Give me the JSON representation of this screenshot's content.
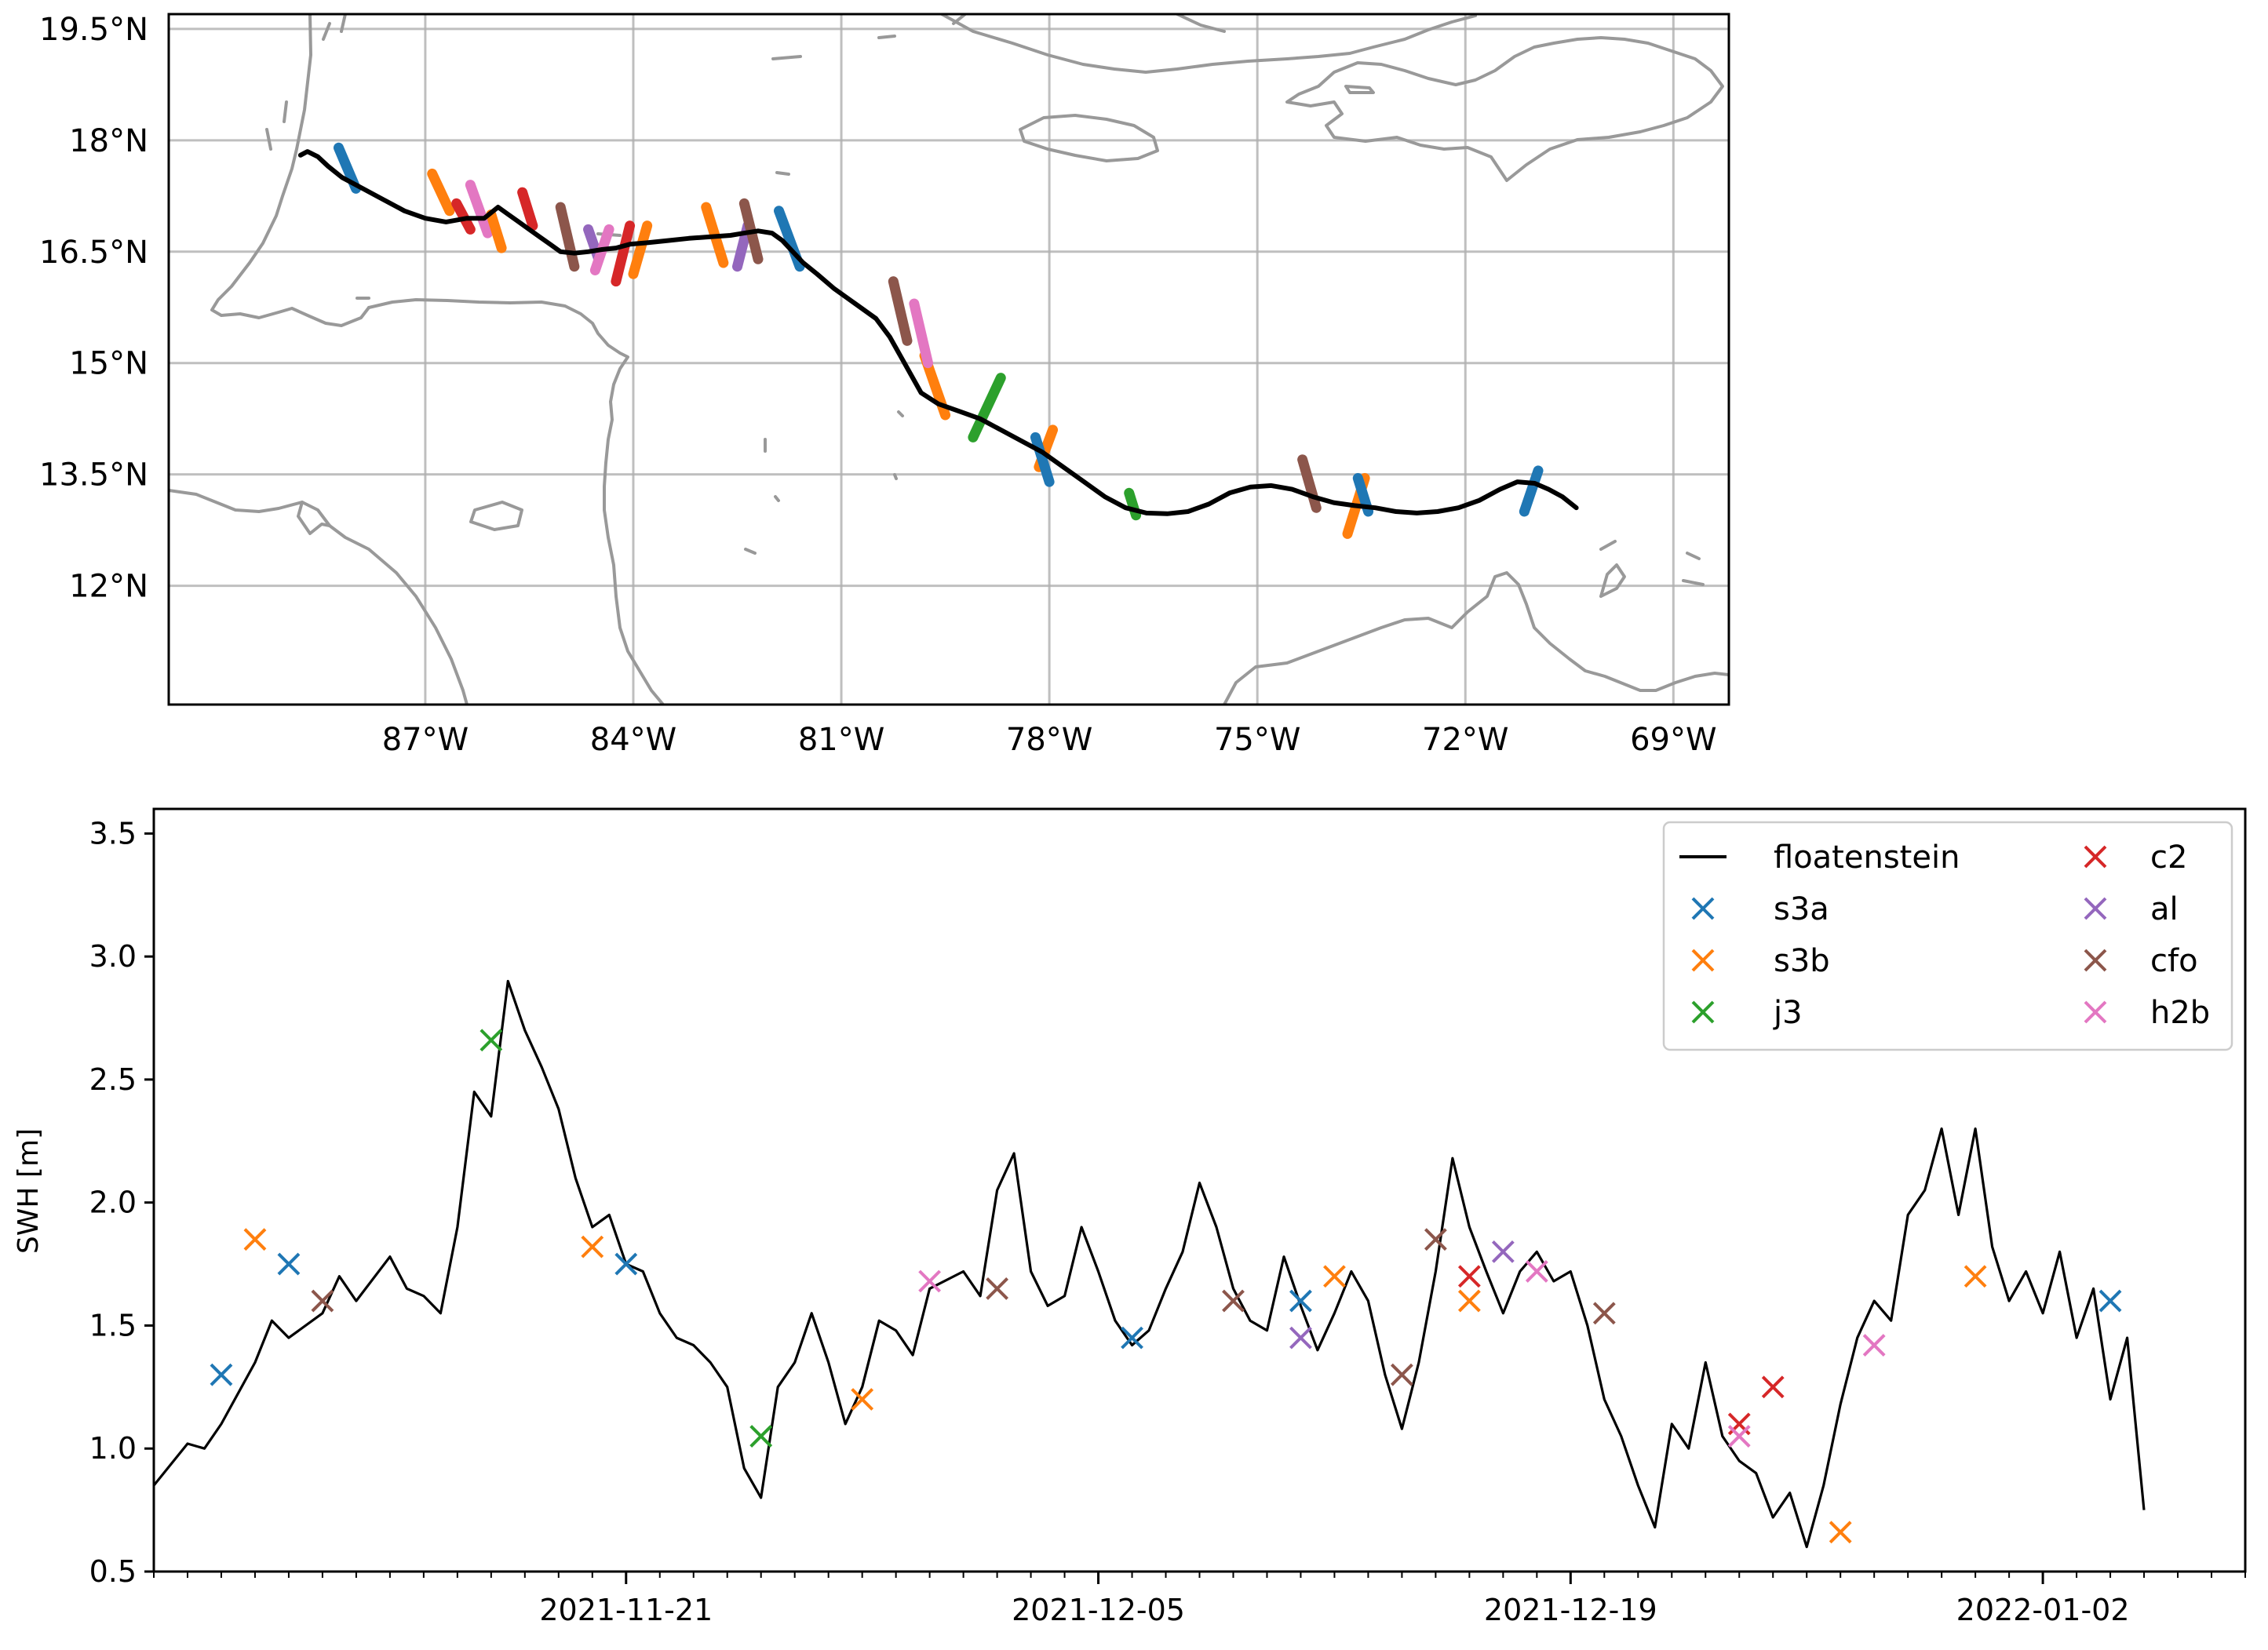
{
  "chart_data": [
    {
      "type": "scatter",
      "subtype": "map-track",
      "title": "",
      "xlabel": "",
      "ylabel": "",
      "xlim": [
        -90.7,
        -68.2
      ],
      "ylim": [
        10.4,
        19.7
      ],
      "grid": true,
      "x_ticks": [
        -87,
        -84,
        -81,
        -78,
        -75,
        -72,
        -69
      ],
      "x_tick_labels": [
        "87°W",
        "84°W",
        "81°W",
        "78°W",
        "75°W",
        "72°W",
        "69°W"
      ],
      "y_ticks": [
        12,
        13.5,
        15,
        16.5,
        18,
        19.5
      ],
      "y_tick_labels": [
        "12°N",
        "13.5°N",
        "15°N",
        "16.5°N",
        "18°N",
        "19.5°N"
      ],
      "track": {
        "name": "floatenstein",
        "color": "#000000",
        "lon": [
          -88.8,
          -88.7,
          -88.55,
          -88.4,
          -88.2,
          -87.9,
          -87.6,
          -87.3,
          -87.0,
          -86.7,
          -86.4,
          -86.15,
          -85.95,
          -85.8,
          -85.65,
          -85.5,
          -85.35,
          -85.2,
          -85.05,
          -84.85,
          -84.65,
          -84.45,
          -84.25,
          -84.05,
          -83.8,
          -83.5,
          -83.2,
          -82.9,
          -82.6,
          -82.4,
          -82.2,
          -82.0,
          -81.85,
          -81.7,
          -81.55,
          -81.35,
          -81.1,
          -80.8,
          -80.5,
          -80.3,
          -80.15,
          -80.0,
          -79.85,
          -79.6,
          -79.3,
          -79.0,
          -78.7,
          -78.4,
          -78.1,
          -77.8,
          -77.5,
          -77.2,
          -76.9,
          -76.6,
          -76.3,
          -76.0,
          -75.7,
          -75.4,
          -75.1,
          -74.8,
          -74.5,
          -74.2,
          -73.9,
          -73.6,
          -73.3,
          -73.0,
          -72.7,
          -72.4,
          -72.1,
          -71.8,
          -71.5,
          -71.25,
          -71.0,
          -70.8,
          -70.6,
          -70.4
        ],
        "lat": [
          17.8,
          17.85,
          17.78,
          17.65,
          17.5,
          17.35,
          17.2,
          17.05,
          16.95,
          16.9,
          16.95,
          16.95,
          17.1,
          17.0,
          16.9,
          16.8,
          16.7,
          16.6,
          16.5,
          16.48,
          16.5,
          16.53,
          16.55,
          16.6,
          16.62,
          16.65,
          16.68,
          16.7,
          16.72,
          16.75,
          16.78,
          16.75,
          16.65,
          16.5,
          16.35,
          16.2,
          16.0,
          15.8,
          15.6,
          15.35,
          15.1,
          14.85,
          14.6,
          14.45,
          14.35,
          14.25,
          14.1,
          13.95,
          13.8,
          13.6,
          13.4,
          13.2,
          13.05,
          12.98,
          12.97,
          13.0,
          13.1,
          13.25,
          13.33,
          13.35,
          13.3,
          13.2,
          13.12,
          13.08,
          13.05,
          13.0,
          12.98,
          13.0,
          13.05,
          13.15,
          13.3,
          13.4,
          13.38,
          13.3,
          13.2,
          13.05
        ]
      },
      "passes": [
        {
          "series": "s3a",
          "lon": [
            -88.25,
            -88.0
          ],
          "lat": [
            17.9,
            17.35
          ]
        },
        {
          "series": "s3b",
          "lon": [
            -86.9,
            -86.65
          ],
          "lat": [
            17.55,
            17.05
          ]
        },
        {
          "series": "c2",
          "lon": [
            -86.55,
            -86.35
          ],
          "lat": [
            17.15,
            16.8
          ]
        },
        {
          "series": "h2b",
          "lon": [
            -86.35,
            -86.1
          ],
          "lat": [
            17.4,
            16.75
          ]
        },
        {
          "series": "s3b",
          "lon": [
            -86.05,
            -85.9
          ],
          "lat": [
            17.0,
            16.55
          ]
        },
        {
          "series": "c2",
          "lon": [
            -85.6,
            -85.45
          ],
          "lat": [
            17.3,
            16.85
          ]
        },
        {
          "series": "cfo",
          "lon": [
            -85.05,
            -84.85
          ],
          "lat": [
            17.1,
            16.3
          ]
        },
        {
          "series": "al",
          "lon": [
            -84.65,
            -84.5
          ],
          "lat": [
            16.8,
            16.4
          ]
        },
        {
          "series": "h2b",
          "lon": [
            -84.35,
            -84.55
          ],
          "lat": [
            16.8,
            16.25
          ]
        },
        {
          "series": "c2",
          "lon": [
            -84.05,
            -84.25
          ],
          "lat": [
            16.85,
            16.1
          ]
        },
        {
          "series": "s3b",
          "lon": [
            -83.8,
            -84.0
          ],
          "lat": [
            16.85,
            16.2
          ]
        },
        {
          "series": "s3b",
          "lon": [
            -82.95,
            -82.7
          ],
          "lat": [
            17.1,
            16.35
          ]
        },
        {
          "series": "al",
          "lon": [
            -82.35,
            -82.5
          ],
          "lat": [
            16.85,
            16.3
          ]
        },
        {
          "series": "cfo",
          "lon": [
            -82.4,
            -82.2
          ],
          "lat": [
            17.15,
            16.4
          ]
        },
        {
          "series": "s3a",
          "lon": [
            -81.9,
            -81.6
          ],
          "lat": [
            17.05,
            16.3
          ]
        },
        {
          "series": "cfo",
          "lon": [
            -80.25,
            -80.05
          ],
          "lat": [
            16.1,
            15.3
          ]
        },
        {
          "series": "s3b",
          "lon": [
            -79.8,
            -79.5
          ],
          "lat": [
            15.1,
            14.3
          ]
        },
        {
          "series": "h2b",
          "lon": [
            -79.95,
            -79.75
          ],
          "lat": [
            15.8,
            15.0
          ]
        },
        {
          "series": "j3",
          "lon": [
            -78.7,
            -79.1
          ],
          "lat": [
            14.8,
            14.0
          ]
        },
        {
          "series": "s3b",
          "lon": [
            -77.95,
            -78.15
          ],
          "lat": [
            14.1,
            13.6
          ]
        },
        {
          "series": "s3a",
          "lon": [
            -78.2,
            -78.0
          ],
          "lat": [
            14.0,
            13.4
          ]
        },
        {
          "series": "j3",
          "lon": [
            -76.85,
            -76.75
          ],
          "lat": [
            13.25,
            12.95
          ]
        },
        {
          "series": "cfo",
          "lon": [
            -74.35,
            -74.15
          ],
          "lat": [
            13.7,
            13.05
          ]
        },
        {
          "series": "s3b",
          "lon": [
            -73.45,
            -73.7
          ],
          "lat": [
            13.45,
            12.7
          ]
        },
        {
          "series": "s3a",
          "lon": [
            -73.55,
            -73.4
          ],
          "lat": [
            13.45,
            13.0
          ]
        },
        {
          "series": "s3a",
          "lon": [
            -70.95,
            -71.15
          ],
          "lat": [
            13.55,
            13.0
          ]
        }
      ]
    },
    {
      "type": "line",
      "title": "",
      "xlabel": "",
      "ylabel": "SWH [m]",
      "x_range": [
        "2021-11-07",
        "2022-01-08"
      ],
      "ylim": [
        0.5,
        3.6
      ],
      "y_ticks": [
        0.5,
        1.0,
        1.5,
        2.0,
        2.5,
        3.0,
        3.5
      ],
      "y_tick_labels": [
        "0.5",
        "1.0",
        "1.5",
        "2.0",
        "2.5",
        "3.0",
        "3.5"
      ],
      "x_ticks": [
        "2021-11-21",
        "2021-12-05",
        "2021-12-19",
        "2022-01-02"
      ],
      "grid": false,
      "legend": {
        "placement": "top-right",
        "entries": [
          {
            "label": "floatenstein",
            "color": "#000000",
            "marker": "line"
          },
          {
            "label": "s3a",
            "color": "#1f77b4",
            "marker": "x"
          },
          {
            "label": "s3b",
            "color": "#ff7f0e",
            "marker": "x"
          },
          {
            "label": "j3",
            "color": "#2ca02c",
            "marker": "x"
          },
          {
            "label": "c2",
            "color": "#d62728",
            "marker": "x"
          },
          {
            "label": "al",
            "color": "#9467bd",
            "marker": "x"
          },
          {
            "label": "cfo",
            "color": "#8c564b",
            "marker": "x"
          },
          {
            "label": "h2b",
            "color": "#e377c2",
            "marker": "x"
          }
        ]
      },
      "line_series": {
        "name": "floatenstein",
        "color": "#000000",
        "x": [
          "2021-11-07",
          "2021-11-08",
          "2021-11-08 12:00",
          "2021-11-09",
          "2021-11-10",
          "2021-11-10 12:00",
          "2021-11-11",
          "2021-11-12",
          "2021-11-12 12:00",
          "2021-11-13",
          "2021-11-14",
          "2021-11-14 12:00",
          "2021-11-15",
          "2021-11-15 12:00",
          "2021-11-16",
          "2021-11-16 12:00",
          "2021-11-17",
          "2021-11-17 12:00",
          "2021-11-18",
          "2021-11-18 12:00",
          "2021-11-19",
          "2021-11-19 12:00",
          "2021-11-20",
          "2021-11-20 12:00",
          "2021-11-21",
          "2021-11-21 12:00",
          "2021-11-22",
          "2021-11-22 12:00",
          "2021-11-23",
          "2021-11-23 12:00",
          "2021-11-24",
          "2021-11-24 12:00",
          "2021-11-25",
          "2021-11-25 12:00",
          "2021-11-26",
          "2021-11-26 12:00",
          "2021-11-27",
          "2021-11-27 12:00",
          "2021-11-28",
          "2021-11-28 12:00",
          "2021-11-29",
          "2021-11-29 12:00",
          "2021-11-30",
          "2021-12-01",
          "2021-12-01 12:00",
          "2021-12-02",
          "2021-12-02 12:00",
          "2021-12-03",
          "2021-12-03 12:00",
          "2021-12-04",
          "2021-12-04 12:00",
          "2021-12-05",
          "2021-12-05 12:00",
          "2021-12-06",
          "2021-12-06 12:00",
          "2021-12-07",
          "2021-12-07 12:00",
          "2021-12-08",
          "2021-12-08 12:00",
          "2021-12-09",
          "2021-12-09 12:00",
          "2021-12-10",
          "2021-12-10 12:00",
          "2021-12-11",
          "2021-12-11 12:00",
          "2021-12-12",
          "2021-12-12 12:00",
          "2021-12-13",
          "2021-12-13 12:00",
          "2021-12-14",
          "2021-12-14 12:00",
          "2021-12-15",
          "2021-12-15 12:00",
          "2021-12-16",
          "2021-12-16 12:00",
          "2021-12-17",
          "2021-12-17 12:00",
          "2021-12-18",
          "2021-12-18 12:00",
          "2021-12-19",
          "2021-12-19 12:00",
          "2021-12-20",
          "2021-12-20 12:00",
          "2021-12-21",
          "2021-12-21 12:00",
          "2021-12-22",
          "2021-12-22 12:00",
          "2021-12-23",
          "2021-12-23 12:00",
          "2021-12-24",
          "2021-12-24 12:00",
          "2021-12-25",
          "2021-12-25 12:00",
          "2021-12-26",
          "2021-12-26 12:00",
          "2021-12-27",
          "2021-12-27 12:00",
          "2021-12-28",
          "2021-12-28 12:00",
          "2021-12-29",
          "2021-12-29 12:00",
          "2021-12-30",
          "2021-12-30 12:00",
          "2021-12-31",
          "2021-12-31 12:00",
          "2022-01-01",
          "2022-01-01 12:00",
          "2022-01-02",
          "2022-01-02 12:00",
          "2022-01-03",
          "2022-01-03 12:00",
          "2022-01-04",
          "2022-01-04 12:00",
          "2022-01-05"
        ],
        "y": [
          0.85,
          1.02,
          1.0,
          1.1,
          1.35,
          1.52,
          1.45,
          1.55,
          1.7,
          1.6,
          1.78,
          1.65,
          1.62,
          1.55,
          1.9,
          2.45,
          2.35,
          2.9,
          2.7,
          2.55,
          2.38,
          2.1,
          1.9,
          1.95,
          1.75,
          1.72,
          1.55,
          1.45,
          1.42,
          1.35,
          1.25,
          0.92,
          0.8,
          1.25,
          1.35,
          1.55,
          1.35,
          1.1,
          1.25,
          1.52,
          1.48,
          1.38,
          1.65,
          1.72,
          1.62,
          2.05,
          2.2,
          1.72,
          1.58,
          1.62,
          1.9,
          1.72,
          1.52,
          1.42,
          1.48,
          1.65,
          1.8,
          2.08,
          1.9,
          1.65,
          1.52,
          1.48,
          1.78,
          1.58,
          1.4,
          1.55,
          1.72,
          1.6,
          1.3,
          1.08,
          1.35,
          1.72,
          2.18,
          1.9,
          1.72,
          1.55,
          1.72,
          1.8,
          1.68,
          1.72,
          1.5,
          1.2,
          1.05,
          0.85,
          0.68,
          1.1,
          1.0,
          1.35,
          1.05,
          0.95,
          0.9,
          0.72,
          0.82,
          0.6,
          0.85,
          1.18,
          1.45,
          1.6,
          1.52,
          1.95,
          2.05,
          2.3,
          1.95,
          2.3,
          1.82,
          1.6,
          1.72,
          1.55,
          1.8,
          1.45,
          1.65,
          1.2,
          1.45,
          0.75
        ]
      },
      "series": [
        {
          "name": "s3a",
          "x": [
            "2021-11-09",
            "2021-11-11",
            "2021-11-21",
            "2021-12-06",
            "2021-12-11",
            "2022-01-04"
          ],
          "y": [
            1.3,
            1.75,
            1.75,
            1.45,
            1.6,
            1.6
          ]
        },
        {
          "name": "s3b",
          "x": [
            "2021-11-10",
            "2021-11-20",
            "2021-11-28",
            "2021-12-12",
            "2021-12-16",
            "2021-12-27",
            "2021-12-31"
          ],
          "y": [
            1.85,
            1.82,
            1.2,
            1.7,
            1.6,
            0.66,
            1.7
          ]
        },
        {
          "name": "j3",
          "x": [
            "2021-11-17",
            "2021-11-25"
          ],
          "y": [
            2.66,
            1.05
          ]
        },
        {
          "name": "c2",
          "x": [
            "2021-12-16",
            "2021-12-24",
            "2021-12-25"
          ],
          "y": [
            1.7,
            1.1,
            1.25
          ]
        },
        {
          "name": "al",
          "x": [
            "2021-12-11",
            "2021-12-17"
          ],
          "y": [
            1.45,
            1.8
          ]
        },
        {
          "name": "cfo",
          "x": [
            "2021-11-12",
            "2021-12-02",
            "2021-12-09",
            "2021-12-14",
            "2021-12-15",
            "2021-12-20"
          ],
          "y": [
            1.6,
            1.65,
            1.6,
            1.3,
            1.85,
            1.55
          ]
        },
        {
          "name": "h2b",
          "x": [
            "2021-11-30",
            "2021-12-18",
            "2021-12-24",
            "2021-12-28"
          ],
          "y": [
            1.68,
            1.72,
            1.05,
            1.42
          ]
        }
      ]
    }
  ]
}
